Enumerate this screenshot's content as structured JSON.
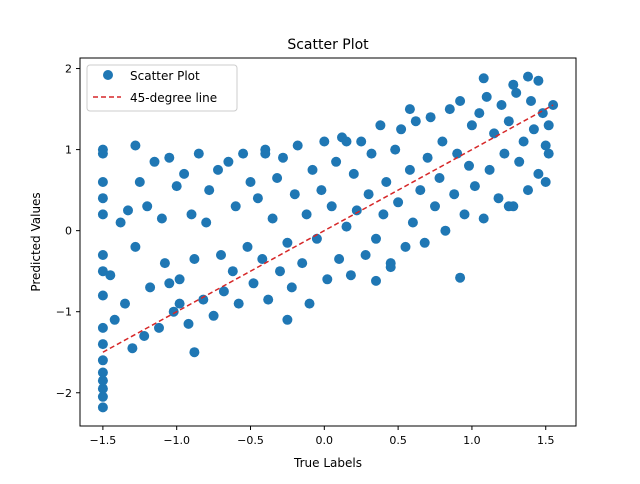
{
  "chart_data": {
    "type": "scatter",
    "title": "Scatter Plot",
    "xlabel": "True Labels",
    "ylabel": "Predicted Values",
    "xlim": [
      -1.655,
      1.705
    ],
    "ylim": [
      -2.41,
      2.13
    ],
    "xticks": [
      -1.5,
      -1.0,
      -0.5,
      0.0,
      0.5,
      1.0,
      1.5
    ],
    "xtick_labels": [
      "−1.5",
      "−1.0",
      "−0.5",
      "0.0",
      "0.5",
      "1.0",
      "1.5"
    ],
    "yticks": [
      -2,
      -1,
      0,
      1,
      2
    ],
    "ytick_labels": [
      "−2",
      "−1",
      "0",
      "1",
      "2"
    ],
    "grid": false,
    "legend": {
      "placement": "upper-left",
      "entries": [
        "Scatter Plot",
        "45-degree line"
      ]
    },
    "series": [
      {
        "name": "Scatter Plot",
        "kind": "scatter",
        "color": "#1f77b4",
        "x": [
          -1.5,
          -1.5,
          -1.5,
          -1.5,
          -1.5,
          -1.5,
          -1.5,
          -1.5,
          -1.5,
          -1.5,
          -1.5,
          -1.5,
          -1.5,
          -1.5,
          -1.45,
          -1.42,
          -1.38,
          -1.35,
          -1.33,
          -1.3,
          -1.28,
          -1.25,
          -1.22,
          -1.2,
          -1.18,
          -1.15,
          -1.12,
          -1.1,
          -1.08,
          -1.05,
          -1.02,
          -1.0,
          -0.98,
          -0.95,
          -0.92,
          -0.9,
          -0.88,
          -0.85,
          -0.82,
          -0.8,
          -0.78,
          -0.75,
          -0.72,
          -0.7,
          -0.68,
          -0.65,
          -0.62,
          -0.6,
          -0.58,
          -0.55,
          -0.52,
          -0.5,
          -0.48,
          -0.45,
          -0.42,
          -0.4,
          -0.38,
          -0.35,
          -0.32,
          -0.3,
          -0.28,
          -0.25,
          -0.22,
          -0.2,
          -0.18,
          -0.15,
          -0.12,
          -0.1,
          -0.08,
          -0.05,
          -0.02,
          0.0,
          0.02,
          0.05,
          0.08,
          0.1,
          0.12,
          0.15,
          0.18,
          0.2,
          0.22,
          0.25,
          0.28,
          0.3,
          0.32,
          0.35,
          0.38,
          0.4,
          0.42,
          0.45,
          0.48,
          0.5,
          0.52,
          0.55,
          0.58,
          0.6,
          0.62,
          0.65,
          0.68,
          0.7,
          0.72,
          0.75,
          0.78,
          0.8,
          0.82,
          0.85,
          0.88,
          0.9,
          0.92,
          0.95,
          0.98,
          1.0,
          1.02,
          1.05,
          1.08,
          1.1,
          1.12,
          1.15,
          1.18,
          1.2,
          1.22,
          1.25,
          1.28,
          1.3,
          1.32,
          1.35,
          1.38,
          1.4,
          1.42,
          1.45,
          1.48,
          1.5,
          1.52,
          1.55,
          -1.28,
          -1.05,
          -0.88,
          -0.4,
          0.15,
          0.35,
          0.92,
          1.08,
          1.28,
          1.38,
          1.45,
          -0.98,
          0.58,
          0.45,
          -0.25,
          -1.5,
          -1.5,
          1.25,
          1.52,
          1.5
        ],
        "y": [
          -2.18,
          -1.95,
          -1.6,
          -1.2,
          -0.8,
          -0.3,
          0.2,
          0.6,
          0.95,
          -1.75,
          -1.4,
          -0.5,
          0.4,
          -2.05,
          -0.55,
          -1.1,
          0.1,
          -0.9,
          0.25,
          -1.45,
          -0.2,
          0.6,
          -1.3,
          0.3,
          -0.7,
          0.85,
          -1.2,
          0.15,
          -0.4,
          0.9,
          -1.0,
          0.55,
          -0.6,
          0.7,
          -1.15,
          0.2,
          -0.35,
          0.95,
          -0.85,
          0.1,
          0.5,
          -1.05,
          0.75,
          -0.3,
          -0.75,
          0.85,
          -0.5,
          0.3,
          -0.9,
          0.95,
          -0.2,
          0.6,
          -0.65,
          0.4,
          -0.35,
          1.0,
          -0.85,
          0.15,
          0.65,
          -0.5,
          0.9,
          -0.15,
          -0.7,
          0.45,
          1.05,
          -0.4,
          0.2,
          -0.9,
          0.75,
          -0.1,
          0.5,
          1.1,
          -0.6,
          0.3,
          0.85,
          -0.35,
          1.15,
          0.05,
          -0.55,
          0.7,
          0.25,
          1.1,
          -0.3,
          0.45,
          0.95,
          -0.1,
          1.3,
          0.2,
          0.6,
          -0.45,
          1.0,
          0.35,
          1.25,
          -0.2,
          0.75,
          0.1,
          1.35,
          0.5,
          -0.15,
          0.9,
          1.4,
          0.3,
          0.65,
          1.1,
          0.0,
          1.5,
          0.45,
          0.95,
          1.6,
          0.2,
          0.8,
          1.3,
          0.55,
          1.45,
          0.15,
          1.65,
          0.75,
          1.2,
          0.4,
          1.55,
          0.95,
          1.35,
          0.3,
          1.7,
          0.85,
          1.1,
          0.5,
          1.6,
          1.25,
          0.7,
          1.45,
          1.05,
          1.3,
          1.55,
          1.05,
          -0.65,
          -1.5,
          0.95,
          1.1,
          -0.62,
          -0.58,
          1.88,
          1.8,
          1.9,
          1.85,
          -0.9,
          1.5,
          -0.4,
          -1.1,
          1.0,
          -1.85,
          0.3,
          0.95,
          0.6
        ]
      },
      {
        "name": "45-degree line",
        "kind": "line",
        "style": "dashed",
        "color": "#d62728",
        "x": [
          -1.5,
          1.55
        ],
        "y": [
          -1.5,
          1.55
        ]
      }
    ]
  }
}
